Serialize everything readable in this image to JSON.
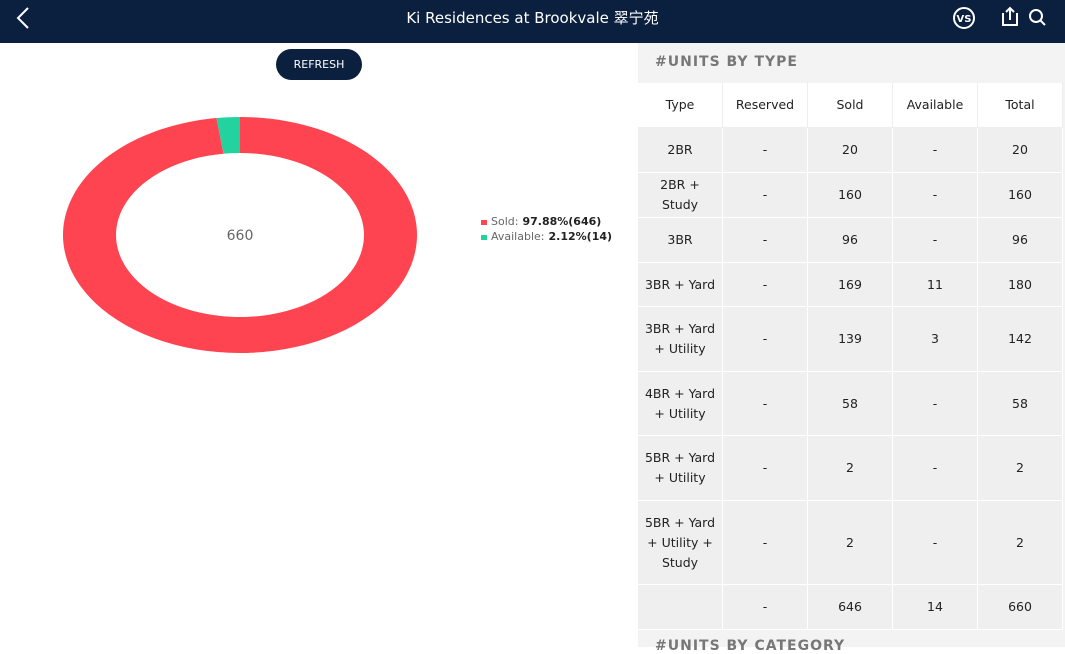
{
  "header": {
    "title": "Ki Residences at Brookvale 翠宁苑",
    "vs_badge": "VS"
  },
  "refresh": "REFRESH",
  "chart_data": {
    "type": "pie",
    "donut": true,
    "center_label": 660,
    "categories": [
      "Sold:",
      "Available:"
    ],
    "values": [
      97.88,
      2.12
    ],
    "value_labels": [
      "97.88%(646)",
      "2.12%(14)"
    ],
    "colors": [
      "#ff4451",
      "#22d3a0"
    ]
  },
  "units_by_type": {
    "title": "#UNITS BY TYPE",
    "columns": [
      "Type",
      "Reserved",
      "Sold",
      "Available",
      "Total"
    ],
    "rows": [
      [
        "2BR",
        "-",
        20,
        "-",
        20
      ],
      [
        "2BR + Study",
        "-",
        160,
        "-",
        160
      ],
      [
        "3BR",
        "-",
        96,
        "-",
        96
      ],
      [
        "3BR + Yard",
        "-",
        169,
        11,
        180
      ],
      [
        "3BR + Yard + Utility",
        "-",
        139,
        3,
        142
      ],
      [
        "4BR + Yard + Utility",
        "-",
        58,
        "-",
        58
      ],
      [
        "5BR + Yard + Utility",
        "-",
        2,
        "-",
        2
      ],
      [
        "5BR + Yard + Utility + Study",
        "-",
        2,
        "-",
        2
      ]
    ],
    "total_row": [
      "-",
      646,
      14,
      660
    ]
  },
  "units_by_category": {
    "title": "#UNITS BY CATEGORY"
  }
}
